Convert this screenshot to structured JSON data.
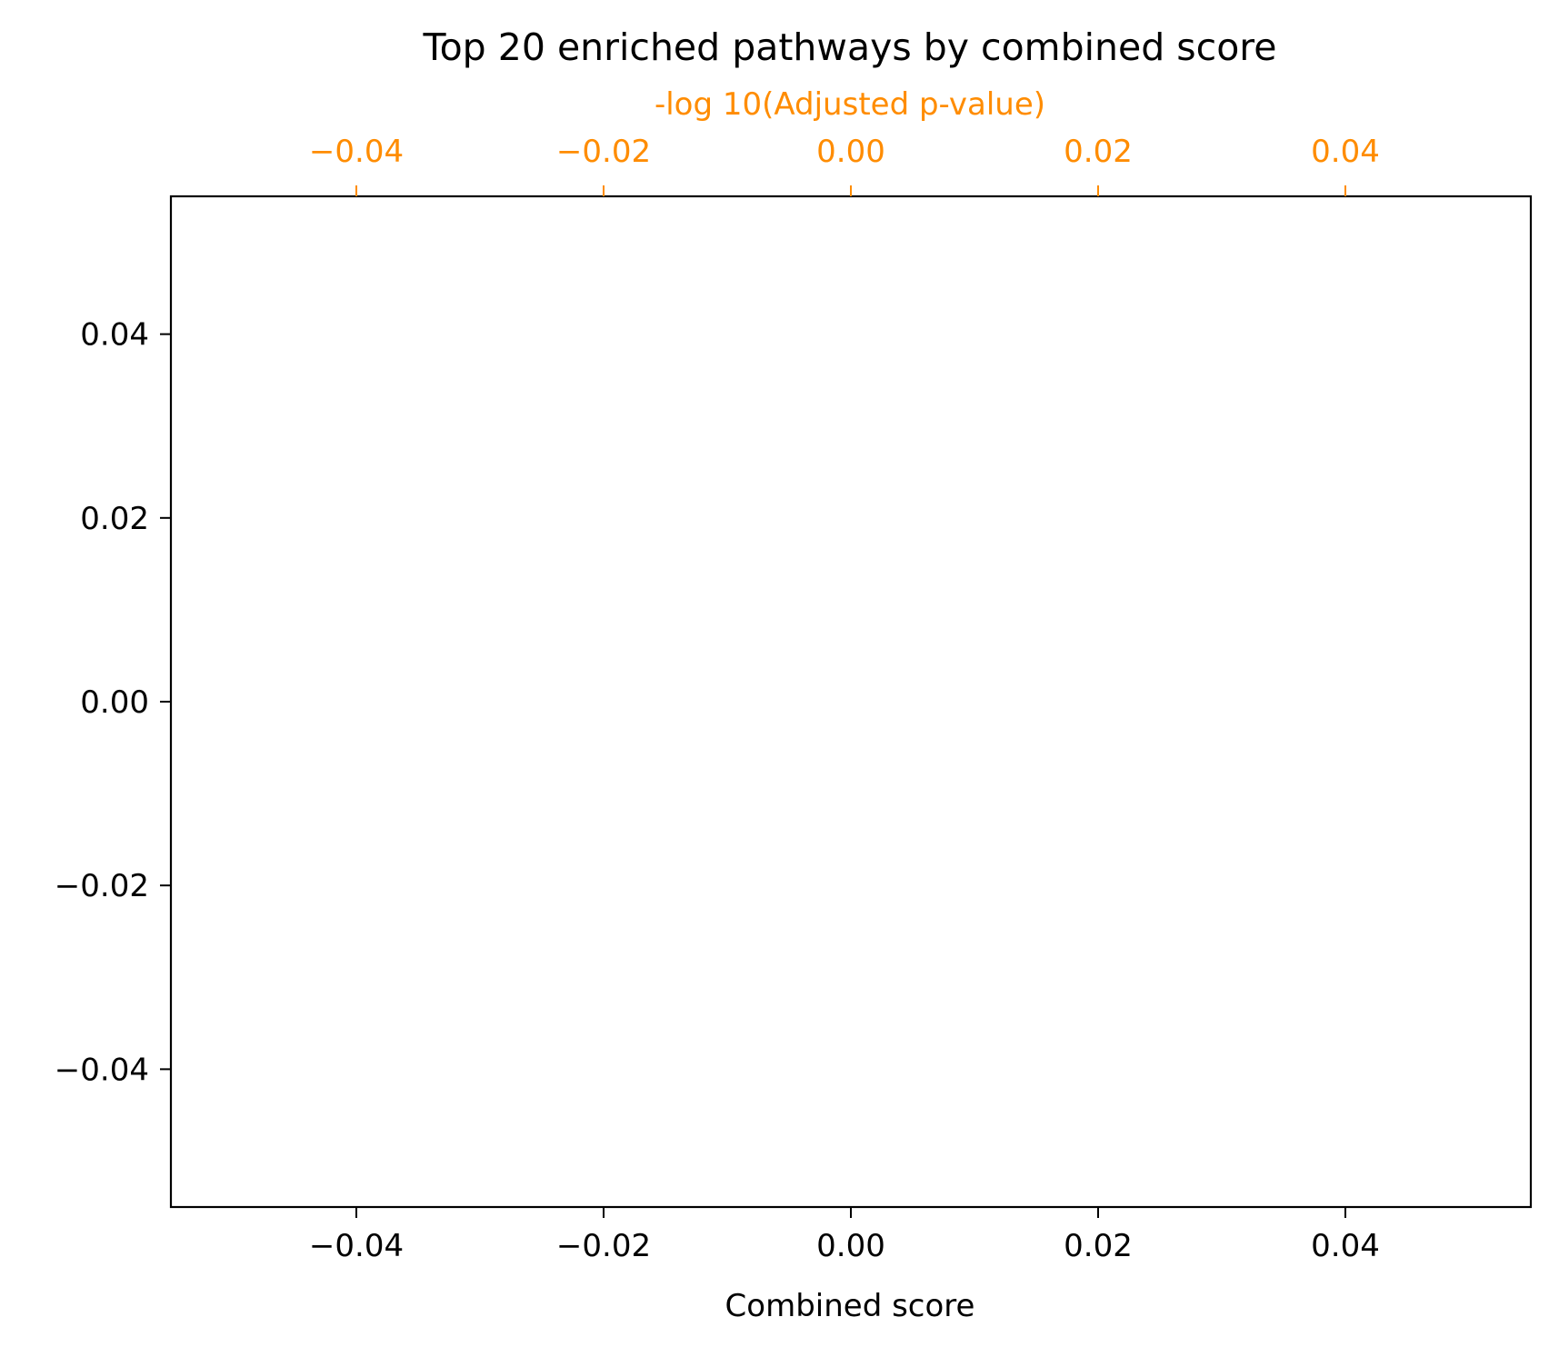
{
  "chart_data": {
    "type": "bar",
    "orientation": "horizontal",
    "title": "Top 20 enriched pathways by combined score",
    "xlabel": "Combined score",
    "x2label": "-log 10(Adjusted p-value)",
    "ylabel": "",
    "xlim": [
      -0.055,
      0.055
    ],
    "x2lim": [
      -0.055,
      0.055
    ],
    "ylim": [
      -0.055,
      0.055
    ],
    "xticks": [
      "−0.04",
      "−0.02",
      "0.00",
      "0.02",
      "0.04"
    ],
    "xtick_values": [
      -0.04,
      -0.02,
      0.0,
      0.02,
      0.04
    ],
    "x2ticks": [
      "−0.04",
      "−0.02",
      "0.00",
      "0.02",
      "0.04"
    ],
    "x2tick_values": [
      -0.04,
      -0.02,
      0.0,
      0.02,
      0.04
    ],
    "yticks": [
      "0.04",
      "0.02",
      "0.00",
      "−0.02",
      "−0.04"
    ],
    "ytick_values": [
      0.04,
      0.02,
      0.0,
      -0.02,
      -0.04
    ],
    "categories": [],
    "values": [],
    "grid": false,
    "colors": {
      "axis": "#000000",
      "secondary_axis": "#ff8c00"
    }
  }
}
